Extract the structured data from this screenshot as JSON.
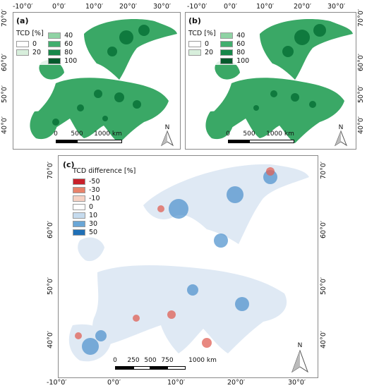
{
  "top_lon_ticks": [
    "-10°0′",
    "0°0′",
    "10°0′",
    "20°0′",
    "30°0′"
  ],
  "bottom_lon_ticks": [
    "-10°0′",
    "0°0′",
    "10°0′",
    "20°0′",
    "30°0′"
  ],
  "panel_a": {
    "label": "(a)",
    "lat_ticks_left": [
      "70°0′",
      "60°0′",
      "50°0′",
      "40°0′"
    ],
    "legend_title": "TCD [%]",
    "legend_items": [
      {
        "label": "0",
        "color": "#ffffff"
      },
      {
        "label": "20",
        "color": "#d8efdc"
      },
      {
        "label": "40",
        "color": "#8fd3a4"
      },
      {
        "label": "60",
        "color": "#41ae6e"
      },
      {
        "label": "80",
        "color": "#17874a"
      },
      {
        "label": "100",
        "color": "#045a2c"
      }
    ],
    "scale_labels": [
      "0",
      "500",
      "1000 km"
    ],
    "north": "N"
  },
  "panel_b": {
    "label": "(b)",
    "lat_ticks_right": [
      "70°0′",
      "60°0′",
      "50°0′",
      "40°0′"
    ],
    "legend_title": "TCD [%]",
    "legend_items": [
      {
        "label": "0",
        "color": "#ffffff"
      },
      {
        "label": "20",
        "color": "#d8efdc"
      },
      {
        "label": "40",
        "color": "#8fd3a4"
      },
      {
        "label": "60",
        "color": "#41ae6e"
      },
      {
        "label": "80",
        "color": "#17874a"
      },
      {
        "label": "100",
        "color": "#045a2c"
      }
    ],
    "scale_labels": [
      "0",
      "500",
      "1000 km"
    ],
    "north": "N"
  },
  "panel_c": {
    "label": "(c)",
    "lat_ticks_left": [
      "70°0′",
      "60°0′",
      "50°0′",
      "40°0′"
    ],
    "lat_ticks_right": [
      "70°0′",
      "60°0′",
      "50°0′",
      "40°0′"
    ],
    "legend_title": "TCD difference [%]",
    "legend_items": [
      {
        "label": "-50",
        "color": "#c8202a"
      },
      {
        "label": "-30",
        "color": "#e8826a"
      },
      {
        "label": "-10",
        "color": "#f6d2c4"
      },
      {
        "label": "0",
        "color": "#ffffff"
      },
      {
        "label": "10",
        "color": "#c6dbee"
      },
      {
        "label": "30",
        "color": "#6aa6d6"
      },
      {
        "label": "50",
        "color": "#1f6fb6"
      }
    ],
    "scale_labels": [
      "0",
      "250",
      "500",
      "750",
      "1000 km"
    ],
    "north": "N"
  },
  "colors": {
    "land_green": "#3aa866",
    "land_green_dark": "#0f7a3e",
    "land_diff_base": "#dfe9f4",
    "diff_blue": "#4a8fcc",
    "diff_red": "#e06055",
    "frame": "#8a8a8a"
  }
}
